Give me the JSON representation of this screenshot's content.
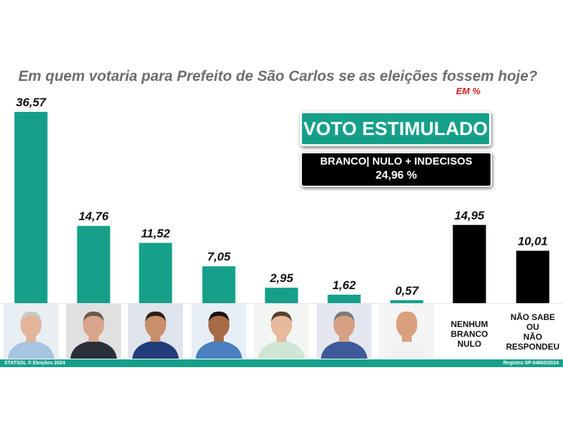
{
  "chart_data": {
    "type": "bar",
    "title": "Em quem votaria para Prefeito de São Carlos se as eleições fossem hoje?",
    "unit_label": "EM %",
    "badge": "VOTO ESTIMULADO",
    "summary": {
      "label": "BRANCO| NULO + INDECISOS",
      "value": "24,96 %"
    },
    "categories": [
      "",
      "",
      "",
      "",
      "",
      "",
      "",
      "NENHUM\nBRANCO\nNULO",
      "NÃO SABE\nOU\nNÃO\nRESPONDEU"
    ],
    "values": [
      36.57,
      14.76,
      11.52,
      7.05,
      2.95,
      1.62,
      0.57,
      14.95,
      10.01
    ],
    "value_labels": [
      "36,57",
      "14,76",
      "11,52",
      "7,05",
      "2,95",
      "1,62",
      "0,57",
      "14,95",
      "10,01"
    ],
    "colors": [
      "#16a08a",
      "#16a08a",
      "#16a08a",
      "#16a08a",
      "#16a08a",
      "#16a08a",
      "#16a08a",
      "#000000",
      "#000000"
    ],
    "ylim": [
      0,
      36.57
    ],
    "grid": false
  },
  "photos": [
    {
      "shirt": "#a7c4e0",
      "skin": "#e2b49a",
      "hair": "#c9c9c9",
      "bg": "#e9eef3"
    },
    {
      "shirt": "#2b2f3a",
      "skin": "#d9a489",
      "hair": "#6b5a4d",
      "bg": "#e0e0e0"
    },
    {
      "shirt": "#223b7a",
      "skin": "#c98f6c",
      "hair": "#2a1e16",
      "bg": "#dfe3ea"
    },
    {
      "shirt": "#4a7fc0",
      "skin": "#a86b48",
      "hair": "#1c1410",
      "bg": "#e8eef5"
    },
    {
      "shirt": "#cfe6d4",
      "skin": "#e7b99b",
      "hair": "#5a3f2c",
      "bg": "#f2f5f2"
    },
    {
      "shirt": "#3e5a9a",
      "skin": "#d6a183",
      "hair": "#7a7a7a",
      "bg": "#e4e7ee"
    },
    {
      "shirt": "#f2f2f2",
      "skin": "#d9a07d",
      "hair": "#d9a07d",
      "bg": "#f5f5f5"
    }
  ],
  "footer": {
    "left": "STATSOL ® Eleições 2024",
    "right": "Registro SP-04665/2024"
  }
}
